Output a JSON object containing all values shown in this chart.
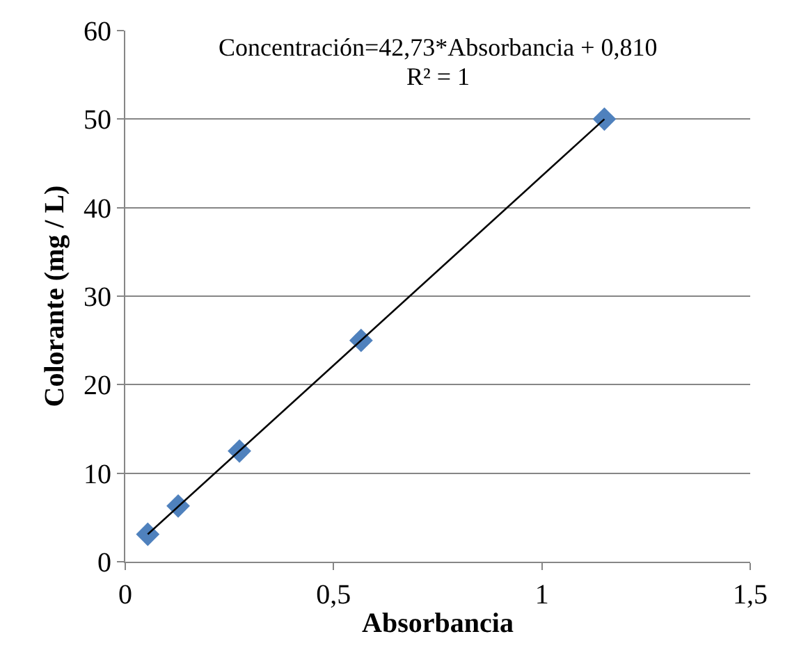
{
  "chart_data": {
    "type": "scatter",
    "xlabel": "Absorbancia",
    "ylabel": "Colorante (mg / L)",
    "annotations": [
      "Concentración=42,73*Absorbancia + 0,810",
      "R² = 1"
    ],
    "xlim": [
      0,
      1.5
    ],
    "ylim": [
      0,
      60
    ],
    "xticks": [
      0,
      {
        "value": 0.5,
        "label": "0,5"
      },
      1,
      {
        "value": 1.5,
        "label": "1,5"
      }
    ],
    "yticks": [
      0,
      10,
      20,
      30,
      40,
      50,
      60
    ],
    "grid": "y",
    "legend": false,
    "marker": "diamond",
    "series": [
      {
        "color": "#4f81bd",
        "x": [
          0.054,
          0.127,
          0.274,
          0.566,
          1.15
        ],
        "values": [
          3.1,
          6.3,
          12.5,
          25,
          50
        ]
      },
      {
        "type": "line",
        "color": "#000000",
        "x": [
          0.054,
          1.15
        ],
        "values": [
          3.1,
          50
        ],
        "marker": "none",
        "line_style": "solid"
      }
    ]
  }
}
